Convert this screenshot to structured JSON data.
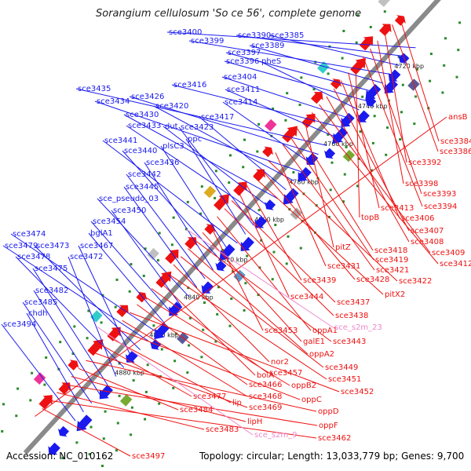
{
  "title": "Sorangium cellulosum 'So ce 56', complete genome",
  "footer": {
    "accession": "Accession: NC_010162",
    "summary": "Topology: circular; Length: 13,033,779 bp; Genes: 9,700"
  },
  "colors": {
    "backbone": "#8a8a8a",
    "forward": "#1a1aee",
    "reverse": "#ee1111",
    "ncrna": "#ee88cc",
    "dots": "#2a8a2a"
  },
  "scale_labels": [
    "4720 kbp",
    "4740 kbp",
    "4760 kbp",
    "4780 kbp",
    "4800 kbp",
    "4820 kbp",
    "4840 kbp",
    "4860 kbp",
    "4880 kbp"
  ],
  "forward_genes": [
    "sce3400",
    "sce3390",
    "sce3385",
    "sce3399",
    "sce3389",
    "sce3397",
    "sce3396",
    "pheS",
    "sce3404",
    "sce3416",
    "sce3411",
    "sce3435",
    "sce3426",
    "sce3414",
    "sce3434",
    "sce3420",
    "sce3417",
    "sce3430",
    "dut",
    "sce3433",
    "sce3423",
    "ppc",
    "sce3441",
    "plsC3",
    "sce3440",
    "sce3436",
    "sce3442",
    "sce3445",
    "sce_pseudo_03",
    "sce3450",
    "sce3454",
    "bglA1",
    "sce3474",
    "sce3479",
    "sce3473",
    "sce3467",
    "sce3478",
    "sce3472",
    "sce3475",
    "sce3482",
    "sce3485",
    "chdh",
    "sce3494"
  ],
  "reverse_genes": [
    "sce3384",
    "sce3386",
    "sce3392",
    "sce3398",
    "sce3393",
    "sce3394",
    "topB",
    "sce3413",
    "sce3406",
    "sce3407",
    "sce3408",
    "sce3409",
    "sce3412",
    "pitZ",
    "sce3418",
    "sce3419",
    "sce3421",
    "sce3431",
    "sce3422",
    "sce3428",
    "pitX2",
    "sce3439",
    "sce3444",
    "sce3437",
    "sce3438",
    "oppA1",
    "sce3453",
    "galE1",
    "sce3443",
    "oppA2",
    "sce3449",
    "nor2",
    "sce3451",
    "bolA",
    "sce3457",
    "oppB2",
    "sce3466",
    "sce3452",
    "sce3468",
    "oppC",
    "lip",
    "sce3477",
    "sce3469",
    "oppD",
    "sce3484",
    "lipH",
    "oppF",
    "sce3483",
    "sce3462",
    "sce3497",
    "ansB"
  ],
  "ncrna_genes": [
    "sce_s2m_23",
    "sce_s2m_9"
  ]
}
